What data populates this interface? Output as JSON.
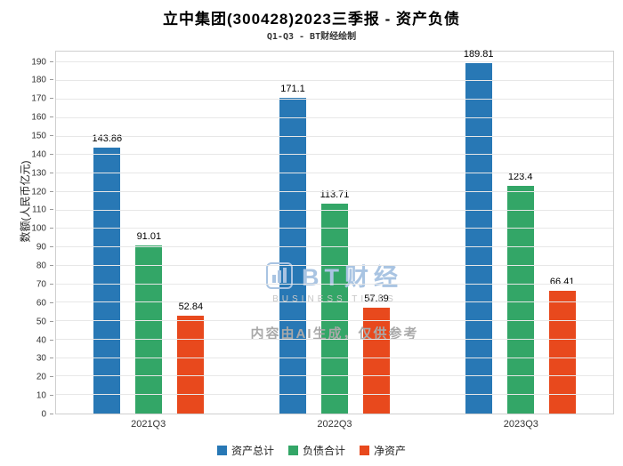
{
  "title": "立中集团(300428)2023三季报 - 资产负债",
  "subtitle": "Q1-Q3 - BT财经绘制",
  "watermark": {
    "logo_text": "BT财经",
    "logo_sub": "BUSINESS TIMES",
    "disclaimer": "内容由AI生成，仅供参考",
    "logo_color": "#a9c4e2"
  },
  "chart_data": {
    "type": "bar",
    "categories": [
      "2021Q3",
      "2022Q3",
      "2023Q3"
    ],
    "series": [
      {
        "name": "资产总计",
        "color": "#2878b5",
        "values": [
          143.86,
          171.1,
          189.81
        ]
      },
      {
        "name": "负债合计",
        "color": "#33a667",
        "values": [
          91.01,
          113.71,
          123.4
        ]
      },
      {
        "name": "净资产",
        "color": "#e8491d",
        "values": [
          52.84,
          57.39,
          66.41
        ]
      }
    ],
    "title": "立中集团(300428)2023三季报 - 资产负债",
    "xlabel": "",
    "ylabel": "数额(人民币亿元)",
    "ylim": [
      0,
      196
    ],
    "ytick_step": 10,
    "ytick_max": 190,
    "grid": true,
    "legend_position": "bottom"
  }
}
